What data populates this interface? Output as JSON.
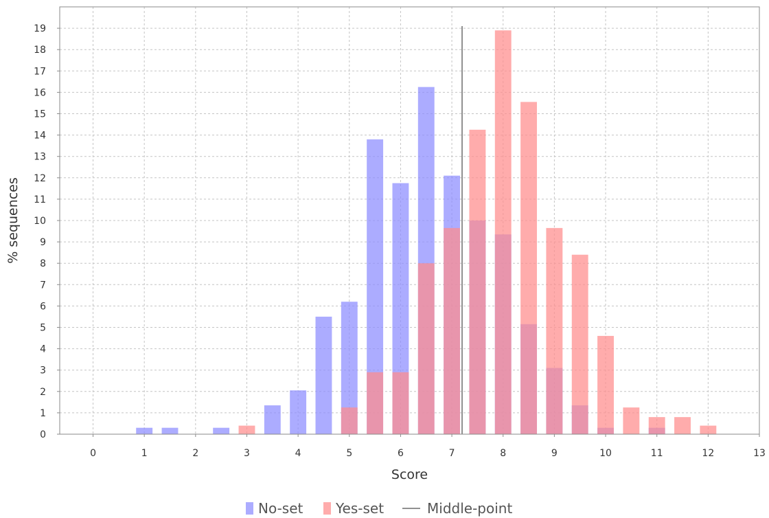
{
  "chart_data": {
    "type": "bar",
    "title": "",
    "xlabel": "Score",
    "ylabel": "% sequences",
    "xlim": [
      -0.65,
      13
    ],
    "ylim": [
      0,
      20
    ],
    "x_ticks": [
      0,
      1,
      2,
      3,
      4,
      5,
      6,
      7,
      8,
      9,
      10,
      11,
      12,
      13
    ],
    "y_ticks": [
      0,
      1,
      2,
      3,
      4,
      5,
      6,
      7,
      8,
      9,
      10,
      11,
      12,
      13,
      14,
      15,
      16,
      17,
      18,
      19
    ],
    "bar_width": 0.32,
    "grid": true,
    "legend_position": "bottom",
    "series": [
      {
        "name": "No-set",
        "color": "#8c8cff",
        "opacity": 0.72,
        "bars": [
          {
            "x": 1.0,
            "y": 0.3
          },
          {
            "x": 1.5,
            "y": 0.3
          },
          {
            "x": 2.5,
            "y": 0.3
          },
          {
            "x": 3.5,
            "y": 1.35
          },
          {
            "x": 4.0,
            "y": 2.05
          },
          {
            "x": 4.5,
            "y": 5.5
          },
          {
            "x": 5.0,
            "y": 6.2
          },
          {
            "x": 5.5,
            "y": 13.8
          },
          {
            "x": 6.0,
            "y": 11.75
          },
          {
            "x": 6.5,
            "y": 16.25
          },
          {
            "x": 7.0,
            "y": 12.1
          },
          {
            "x": 7.5,
            "y": 10.0
          },
          {
            "x": 8.0,
            "y": 9.35
          },
          {
            "x": 8.5,
            "y": 5.15
          },
          {
            "x": 9.0,
            "y": 3.1
          },
          {
            "x": 9.5,
            "y": 1.35
          },
          {
            "x": 10.0,
            "y": 0.3
          },
          {
            "x": 11.0,
            "y": 0.3
          }
        ]
      },
      {
        "name": "Yes-set",
        "color": "#ff8c8c",
        "opacity": 0.72,
        "bars": [
          {
            "x": 3.0,
            "y": 0.4
          },
          {
            "x": 5.0,
            "y": 1.25
          },
          {
            "x": 5.5,
            "y": 2.9
          },
          {
            "x": 6.0,
            "y": 2.9
          },
          {
            "x": 6.5,
            "y": 8.0
          },
          {
            "x": 7.0,
            "y": 9.65
          },
          {
            "x": 7.5,
            "y": 14.25
          },
          {
            "x": 8.0,
            "y": 18.9
          },
          {
            "x": 8.5,
            "y": 15.55
          },
          {
            "x": 9.0,
            "y": 9.65
          },
          {
            "x": 9.5,
            "y": 8.4
          },
          {
            "x": 10.0,
            "y": 4.6
          },
          {
            "x": 10.5,
            "y": 1.25
          },
          {
            "x": 11.0,
            "y": 0.8
          },
          {
            "x": 11.5,
            "y": 0.8
          },
          {
            "x": 12.0,
            "y": 0.4
          }
        ]
      }
    ],
    "middle_point": {
      "name": "Middle-point",
      "color": "#909090",
      "x": 7.2,
      "y_top": 19.1
    }
  }
}
